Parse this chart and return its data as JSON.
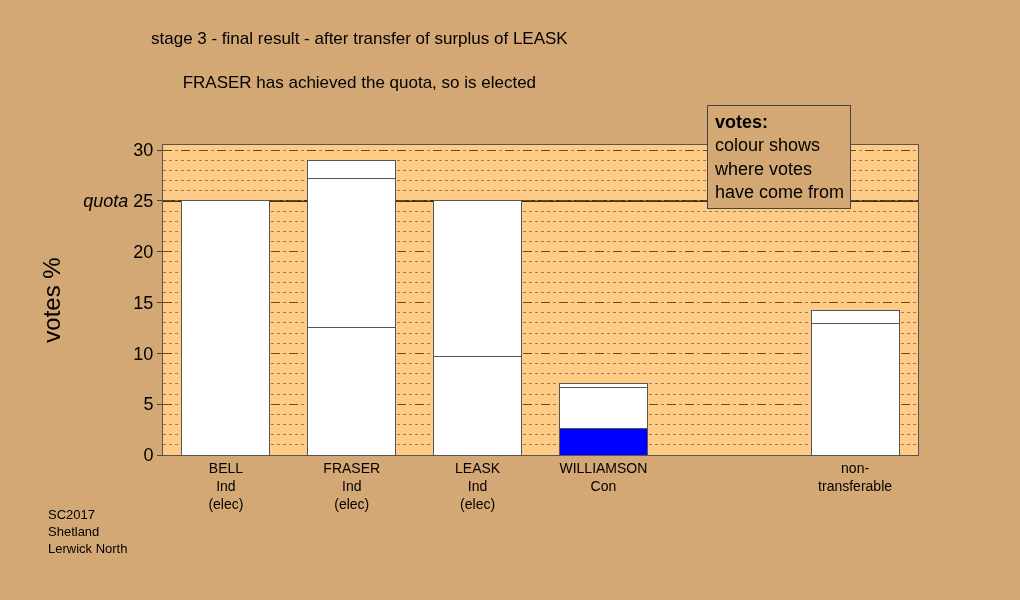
{
  "chart_data": {
    "type": "bar",
    "stacked": true,
    "title": "stage 3 - final result - after transfer of surplus of LEASK",
    "subtitle": "FRASER has achieved the quota, so is elected",
    "ylabel": "votes %",
    "categories": [
      "BELL\nInd\n(elec)",
      "FRASER\nInd\n(elec)",
      "LEASK\nInd\n(elec)",
      "WILLIAMSON\nCon",
      null,
      "non-\ntransferable"
    ],
    "series": [
      {
        "colors": [
          "#ffffff",
          "#ffffff",
          "#ffffff",
          "#0000ff",
          "#ffffff",
          "#ffffff"
        ],
        "values": [
          25,
          12.5,
          9.7,
          2.6,
          null,
          12.9
        ]
      },
      {
        "colors": [
          "#ffffff",
          "#ffffff",
          "#ffffff",
          "#ffffff",
          "#ffffff",
          "#ffffff"
        ],
        "values": [
          null,
          14.7,
          15.3,
          4.0,
          null,
          1.3
        ]
      },
      {
        "colors": [
          "#ffffff",
          "#ffffff",
          "#ffffff",
          "#ffffff",
          "#ffffff",
          "#ffffff"
        ],
        "values": [
          null,
          1.8,
          null,
          0.4,
          null,
          null
        ]
      }
    ],
    "ylim": [
      0,
      30.5
    ],
    "yticks": [
      0,
      5,
      10,
      15,
      20,
      {
        "value": 25,
        "label": "quota 25"
      },
      30
    ],
    "ref_lines": [
      {
        "axis": "y",
        "value": 25,
        "color": "#000000",
        "line_style": "solid"
      }
    ],
    "grid": "y",
    "annotations": [
      "votes:\ncolour shows\nwhere votes\nhave come from",
      "SC2017\nShetland\nLerwick North"
    ]
  }
}
